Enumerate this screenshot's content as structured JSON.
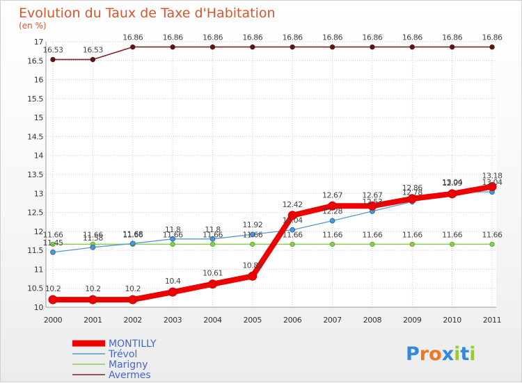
{
  "chart_data": {
    "type": "line",
    "title": "Evolution du Taux de Taxe d'Habitation",
    "ylabel": "(en %)",
    "xlabel": "",
    "categories": [
      "2000",
      "2001",
      "2002",
      "2003",
      "2004",
      "2005",
      "2006",
      "2007",
      "2008",
      "2009",
      "2010",
      "2011"
    ],
    "ylim": [
      10,
      17
    ],
    "yticks": [
      "10",
      "10.5",
      "11",
      "11.5",
      "12",
      "12.5",
      "13",
      "13.5",
      "14",
      "14.5",
      "15",
      "15.5",
      "16",
      "16.5",
      "17"
    ],
    "grid": true,
    "legend_position": "bottom-left",
    "series": [
      {
        "name": "Avermes",
        "color": "#7a2222",
        "values": [
          16.53,
          16.53,
          16.86,
          16.86,
          16.86,
          16.86,
          16.86,
          16.86,
          16.86,
          16.86,
          16.86,
          16.86
        ],
        "labels": [
          "16.53",
          "16.53",
          "16.86",
          "16.86",
          "16.86",
          "16.86",
          "16.86",
          "16.86",
          "16.86",
          "16.86",
          "16.86",
          "16.86"
        ]
      },
      {
        "name": "Marigny",
        "color": "#88cc55",
        "values": [
          11.66,
          11.66,
          11.66,
          11.66,
          11.66,
          11.66,
          11.66,
          11.66,
          11.66,
          11.66,
          11.66,
          11.66
        ],
        "labels": [
          "11.66",
          "11.66",
          "11.66",
          "11.66",
          "11.66",
          "11.66",
          "11.66",
          "11.66",
          "11.66",
          "11.66",
          "11.66",
          "11.66"
        ]
      },
      {
        "name": "Trévol",
        "color": "#5599cc",
        "values": [
          11.45,
          11.58,
          11.68,
          11.8,
          11.8,
          11.92,
          12.04,
          12.28,
          12.53,
          12.78,
          13.04,
          13.04
        ],
        "labels": [
          "11.45",
          "11.58",
          "11.68",
          "11.8",
          "11.8",
          "11.92",
          "12.04",
          "12.28",
          "12.53",
          "12.78",
          "13.04",
          "13.04"
        ]
      },
      {
        "name": "MONTILLY",
        "color": "#ee0000",
        "values": [
          10.2,
          10.2,
          10.2,
          10.4,
          10.61,
          10.82,
          12.42,
          12.67,
          12.67,
          12.86,
          12.99,
          13.18
        ],
        "labels": [
          "10.2",
          "10.2",
          "10.2",
          "10.4",
          "10.61",
          "10.82",
          "12.42",
          "12.67",
          "12.67",
          "12.86",
          "12.99",
          "13.18"
        ]
      }
    ],
    "legend_order": [
      "MONTILLY",
      "Trévol",
      "Marigny",
      "Avermes"
    ]
  },
  "colors": {
    "title": "#d9532c",
    "grid": "#cccccc",
    "axis": "#999999",
    "legend_text": "#4466cc"
  },
  "logo": {
    "text": "Proxiti",
    "letters": [
      "P",
      "r",
      "o",
      "x",
      "i",
      "t",
      "i"
    ],
    "letter_colors": [
      "#3388dd",
      "#ee7722",
      "#ee7722",
      "#3388dd",
      "#99cc33",
      "#3388dd",
      "#99cc33"
    ]
  }
}
